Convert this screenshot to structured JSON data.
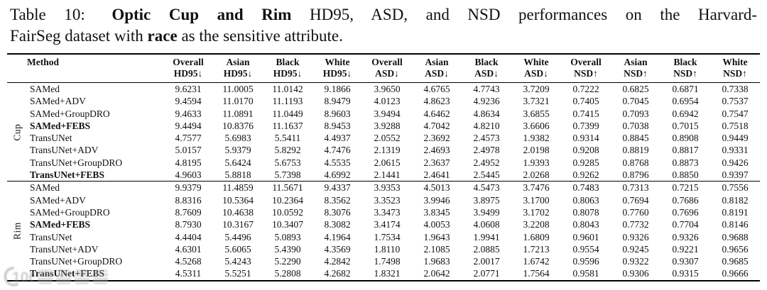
{
  "caption": {
    "line1": {
      "label": "Table 10: ",
      "title_bold": "Optic Cup and Rim",
      "rest": " HD95, ASD, and NSD performances on the Harvard-"
    },
    "line2": {
      "pre": "FairSeg dataset with ",
      "attr_bold": "race",
      "post": " as the sensitive attribute."
    }
  },
  "table": {
    "method_header": "Method",
    "columns": [
      {
        "group": "Overall",
        "metric": "HD95↓"
      },
      {
        "group": "Asian",
        "metric": "HD95↓"
      },
      {
        "group": "Black",
        "metric": "HD95↓"
      },
      {
        "group": "White",
        "metric": "HD95↓"
      },
      {
        "group": "Overall",
        "metric": "ASD↓"
      },
      {
        "group": "Asian",
        "metric": "ASD↓"
      },
      {
        "group": "Black",
        "metric": "ASD↓"
      },
      {
        "group": "White",
        "metric": "ASD↓"
      },
      {
        "group": "Overall",
        "metric": "NSD↑"
      },
      {
        "group": "Asian",
        "metric": "NSD↑"
      },
      {
        "group": "Black",
        "metric": "NSD↑"
      },
      {
        "group": "White",
        "metric": "NSD↑"
      }
    ],
    "groups": [
      {
        "label": "Cup",
        "rows": [
          {
            "method": "SAMed",
            "bold": false,
            "values": [
              "9.6231",
              "11.0005",
              "11.0142",
              "9.1866",
              "3.9650",
              "4.6765",
              "4.7743",
              "3.7209",
              "0.7222",
              "0.6825",
              "0.6871",
              "0.7338"
            ]
          },
          {
            "method": "SAMed+ADV",
            "bold": false,
            "values": [
              "9.4594",
              "11.0170",
              "11.1193",
              "8.9479",
              "4.0123",
              "4.8623",
              "4.9236",
              "3.7321",
              "0.7405",
              "0.7045",
              "0.6954",
              "0.7537"
            ]
          },
          {
            "method": "SAMed+GroupDRO",
            "bold": false,
            "values": [
              "9.4633",
              "11.0891",
              "11.0449",
              "8.9603",
              "3.9494",
              "4.6462",
              "4.8634",
              "3.6855",
              "0.7415",
              "0.7093",
              "0.6942",
              "0.7547"
            ]
          },
          {
            "method": "SAMed+FEBS",
            "bold": true,
            "values": [
              "9.4494",
              "10.8376",
              "11.1637",
              "8.9453",
              "3.9288",
              "4.7042",
              "4.8210",
              "3.6606",
              "0.7399",
              "0.7038",
              "0.7015",
              "0.7518"
            ]
          },
          {
            "method": "TransUNet",
            "bold": false,
            "values": [
              "4.7577",
              "5.6983",
              "5.5411",
              "4.4937",
              "2.0552",
              "2.3692",
              "2.4573",
              "1.9382",
              "0.9314",
              "0.8845",
              "0.8908",
              "0.9449"
            ]
          },
          {
            "method": "TransUNet+ADV",
            "bold": false,
            "values": [
              "5.0157",
              "5.9379",
              "5.8292",
              "4.7476",
              "2.1319",
              "2.4693",
              "2.4978",
              "2.0198",
              "0.9208",
              "0.8819",
              "0.8817",
              "0.9331"
            ]
          },
          {
            "method": "TransUNet+GroupDRO",
            "bold": false,
            "values": [
              "4.8195",
              "5.6424",
              "5.6753",
              "4.5535",
              "2.0615",
              "2.3637",
              "2.4952",
              "1.9393",
              "0.9285",
              "0.8768",
              "0.8873",
              "0.9426"
            ]
          },
          {
            "method": "TransUNet+FEBS",
            "bold": true,
            "values": [
              "4.9603",
              "5.8818",
              "5.7398",
              "4.6992",
              "2.1441",
              "2.4641",
              "2.5445",
              "2.0268",
              "0.9262",
              "0.8796",
              "0.8850",
              "0.9397"
            ]
          }
        ]
      },
      {
        "label": "Rim",
        "rows": [
          {
            "method": "SAMed",
            "bold": false,
            "values": [
              "9.9379",
              "11.4859",
              "11.5671",
              "9.4337",
              "3.9353",
              "4.5013",
              "4.5473",
              "3.7476",
              "0.7483",
              "0.7313",
              "0.7215",
              "0.7556"
            ]
          },
          {
            "method": "SAMed+ADV",
            "bold": false,
            "values": [
              "8.8316",
              "10.5364",
              "10.2364",
              "8.3562",
              "3.3523",
              "3.9946",
              "3.8975",
              "3.1700",
              "0.8063",
              "0.7694",
              "0.7686",
              "0.8182"
            ]
          },
          {
            "method": "SAMed+GroupDRO",
            "bold": false,
            "values": [
              "8.7609",
              "10.4638",
              "10.0592",
              "8.3076",
              "3.3473",
              "3.8345",
              "3.9499",
              "3.1702",
              "0.8078",
              "0.7760",
              "0.7696",
              "0.8191"
            ]
          },
          {
            "method": "SAMed+FEBS",
            "bold": true,
            "values": [
              "8.7930",
              "10.3167",
              "10.3407",
              "8.3082",
              "3.4174",
              "4.0053",
              "4.0608",
              "3.2208",
              "0.8043",
              "0.7732",
              "0.7704",
              "0.8146"
            ]
          },
          {
            "method": "TransUNet",
            "bold": false,
            "values": [
              "4.4404",
              "5.4496",
              "5.0893",
              "4.1964",
              "1.7534",
              "1.9643",
              "1.9941",
              "1.6809",
              "0.9601",
              "0.9326",
              "0.9326",
              "0.9688"
            ]
          },
          {
            "method": "TransUNet+ADV",
            "bold": false,
            "values": [
              "4.6301",
              "5.6065",
              "5.4390",
              "4.3569",
              "1.8110",
              "2.1085",
              "2.0885",
              "1.7213",
              "0.9554",
              "0.9245",
              "0.9221",
              "0.9656"
            ]
          },
          {
            "method": "TransUNet+GroupDRO",
            "bold": false,
            "values": [
              "4.5268",
              "5.4243",
              "5.2290",
              "4.2842",
              "1.7498",
              "1.9683",
              "2.0017",
              "1.6742",
              "0.9596",
              "0.9322",
              "0.9307",
              "0.9685"
            ]
          },
          {
            "method": "TransUNet+FEBS",
            "bold": true,
            "values": [
              "4.5311",
              "5.5251",
              "5.2808",
              "4.2682",
              "1.8321",
              "2.0642",
              "2.0771",
              "1.7564",
              "0.9581",
              "0.9306",
              "0.9315",
              "0.9666"
            ]
          }
        ]
      }
    ]
  },
  "watermark": {
    "logo": "100"
  },
  "colors": {
    "text": "#111111",
    "rule": "#000000",
    "watermark_gray": "#8a8a8a"
  }
}
